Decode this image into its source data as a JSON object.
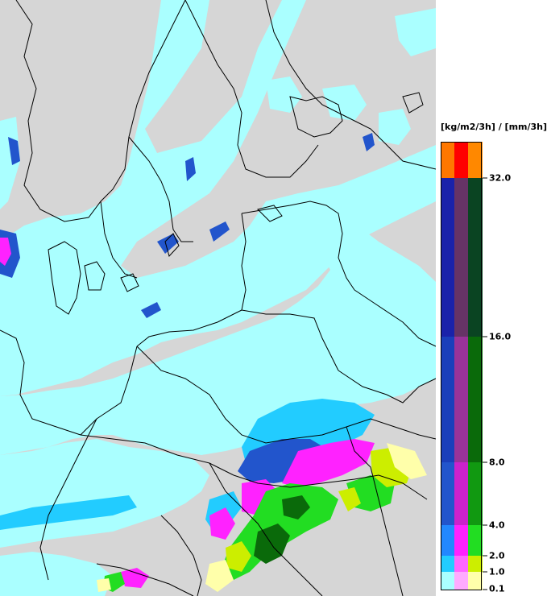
{
  "legend": {
    "unit": "[kg/m2/3h] / [mm/3h]",
    "ticks": [
      "32.0",
      "16.0",
      "8.0",
      "4.0",
      "2.0",
      "1.0",
      "0.1"
    ],
    "bins": [
      {
        "label": "0.1",
        "colors": [
          "#aaffff",
          "#ffaaff",
          "#ffffaa"
        ]
      },
      {
        "label": "1.0",
        "colors": [
          "#22ccff",
          "#ff66ff",
          "#ccee00"
        ]
      },
      {
        "label": "2.0",
        "colors": [
          "#2288ff",
          "#ff22ff",
          "#22dd22"
        ]
      },
      {
        "label": "4.0",
        "colors": [
          "#2255cc",
          "#cc22cc",
          "#119911"
        ]
      },
      {
        "label": "8.0",
        "colors": [
          "#1a3fbb",
          "#993399",
          "#0a6a0a"
        ]
      },
      {
        "label": "16.0",
        "colors": [
          "#1a22aa",
          "#663366",
          "#0a4422"
        ]
      },
      {
        "label": "32.0",
        "colors": [
          "#ff7700",
          "#ff0000",
          "#ff8800"
        ]
      }
    ]
  },
  "map": {
    "land_color": "#d6d6d6",
    "border_color": "#000000",
    "description_colors": {
      "light": "#aaffff",
      "medium": "#22ccff",
      "heavy": "#2255cc"
    }
  }
}
